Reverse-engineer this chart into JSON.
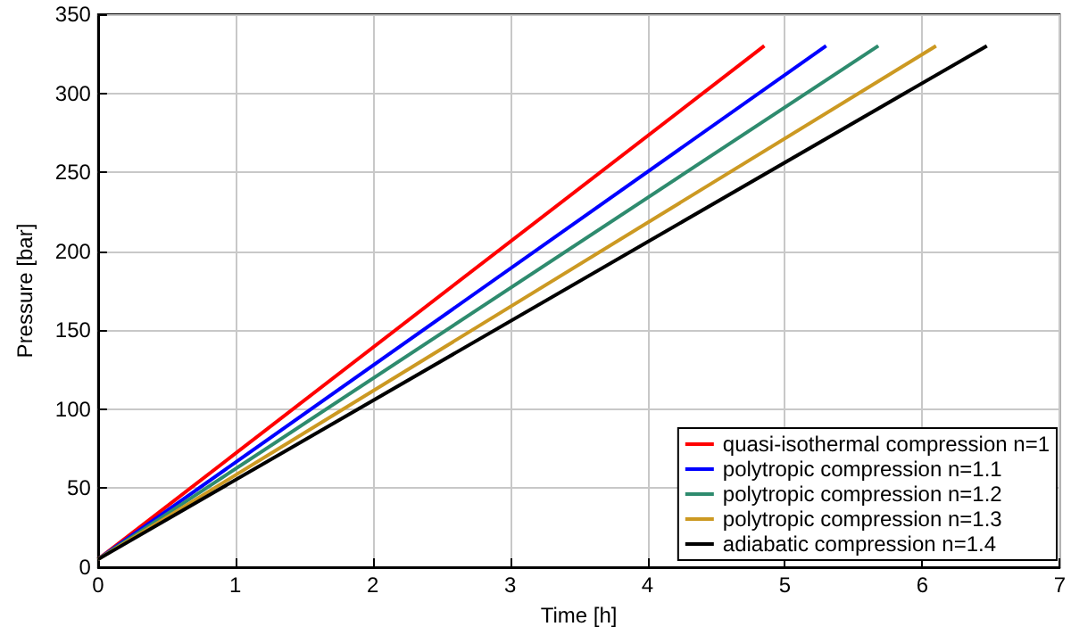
{
  "chart_data": {
    "type": "line",
    "xlabel": "Time [h]",
    "ylabel": "Pressure [bar]",
    "xlim": [
      0,
      7
    ],
    "xticks": [
      0,
      1,
      2,
      3,
      4,
      5,
      6,
      7
    ],
    "ylim": [
      0,
      350
    ],
    "yticks": [
      0,
      50,
      100,
      150,
      200,
      250,
      300,
      350
    ],
    "grid": true,
    "legend": "bottom right",
    "marker": "none",
    "line_style": "solid",
    "series": [
      {
        "name": "quasi-isothermal compression n=1",
        "color": "#ff0000",
        "x": [
          0,
          4.85
        ],
        "values": [
          5,
          330
        ]
      },
      {
        "name": "polytropic compression n=1.1",
        "color": "#0000ff",
        "x": [
          0,
          5.3
        ],
        "values": [
          5,
          330
        ]
      },
      {
        "name": "polytropic compression n=1.2",
        "color": "#2e8b6e",
        "x": [
          0,
          5.68
        ],
        "values": [
          5,
          330
        ]
      },
      {
        "name": "polytropic compression n=1.3",
        "color": "#cc9922",
        "x": [
          0,
          6.1
        ],
        "values": [
          5,
          330
        ]
      },
      {
        "name": "adiabatic compression n=1.4",
        "color": "#000000",
        "x": [
          0,
          6.47
        ],
        "values": [
          5,
          330
        ]
      }
    ]
  }
}
